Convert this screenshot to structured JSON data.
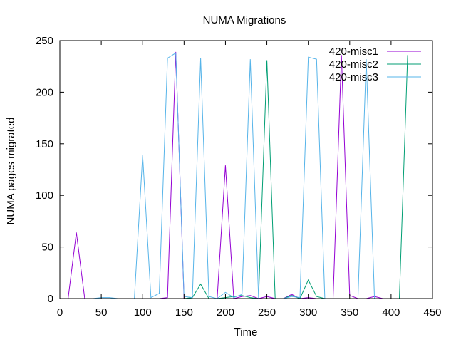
{
  "chart_data": {
    "type": "line",
    "title": "NUMA Migrations",
    "xlabel": "Time",
    "ylabel": "NUMA pages migrated",
    "xlim": [
      0,
      450
    ],
    "ylim": [
      0,
      250
    ],
    "xticks": [
      0,
      50,
      100,
      150,
      200,
      250,
      300,
      350,
      400,
      450
    ],
    "yticks": [
      0,
      50,
      100,
      150,
      200,
      250
    ],
    "grid": false,
    "legend_position": "top-right",
    "series": [
      {
        "name": "420-misc1",
        "color": "#9400d3",
        "x": [
          10,
          20,
          30,
          40,
          50,
          60,
          70,
          80,
          90,
          100,
          110,
          120,
          130,
          140,
          150,
          160,
          170,
          180,
          190,
          200,
          210,
          220,
          230,
          240,
          250,
          260,
          270,
          280,
          290,
          300,
          310,
          320,
          330,
          340,
          350,
          360,
          370,
          380,
          390,
          400,
          410
        ],
        "y": [
          0,
          64,
          0,
          0,
          0,
          0,
          0,
          0,
          0,
          0,
          0,
          0,
          1,
          239,
          0,
          0,
          0,
          0,
          0,
          129,
          0,
          2,
          3,
          0,
          2,
          0,
          0,
          4,
          0,
          1,
          0,
          0,
          0,
          236,
          3,
          0,
          0,
          2,
          0,
          0,
          0
        ]
      },
      {
        "name": "420-misc2",
        "color": "#009e73",
        "x": [
          10,
          20,
          30,
          40,
          50,
          60,
          70,
          80,
          90,
          100,
          110,
          120,
          130,
          140,
          150,
          160,
          170,
          180,
          190,
          200,
          210,
          220,
          230,
          240,
          250,
          260,
          270,
          280,
          290,
          300,
          310,
          320,
          330,
          340,
          350,
          360,
          370,
          380,
          390,
          400,
          410,
          420
        ],
        "y": [
          0,
          0,
          0,
          0,
          0,
          0,
          0,
          0,
          0,
          0,
          0,
          0,
          0,
          0,
          0,
          1,
          14,
          0,
          0,
          1,
          2,
          3,
          1,
          0,
          231,
          0,
          0,
          3,
          0,
          18,
          2,
          0,
          0,
          0,
          0,
          0,
          0,
          0,
          0,
          0,
          0,
          236
        ]
      },
      {
        "name": "420-misc3",
        "color": "#56b4e9",
        "x": [
          10,
          20,
          30,
          40,
          50,
          60,
          70,
          80,
          90,
          100,
          110,
          120,
          130,
          140,
          150,
          160,
          170,
          180,
          190,
          200,
          210,
          220,
          230,
          240,
          250,
          260,
          270,
          280,
          290,
          300,
          310,
          320,
          330,
          340,
          350,
          360,
          370,
          380,
          390,
          400,
          410
        ],
        "y": [
          0,
          0,
          0,
          0,
          1,
          1,
          0,
          0,
          0,
          139,
          1,
          5,
          233,
          238,
          2,
          1,
          233,
          2,
          0,
          6,
          1,
          4,
          232,
          0,
          0,
          0,
          0,
          2,
          1,
          234,
          232,
          0,
          0,
          0,
          0,
          0,
          232,
          0,
          0,
          0,
          0
        ]
      }
    ]
  }
}
